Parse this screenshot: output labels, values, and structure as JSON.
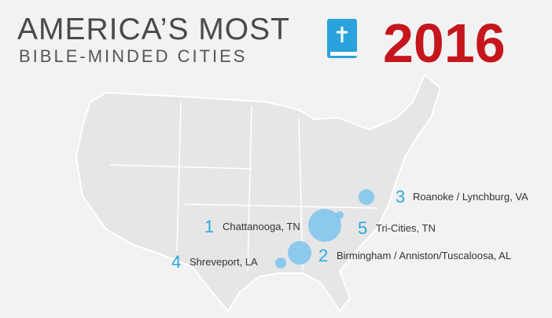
{
  "header": {
    "title": "AMERICA’S MOST",
    "subtitle": "BIBLE-MINDED CITIES",
    "year": "2016"
  },
  "cities": [
    {
      "rank": 1,
      "name": "Chattanooga, TN"
    },
    {
      "rank": 2,
      "name": "Birmingham / Anniston/Tuscaloosa, AL"
    },
    {
      "rank": 3,
      "name": "Roanoke / Lynchburg, VA"
    },
    {
      "rank": 4,
      "name": "Shreveport, LA"
    },
    {
      "rank": 5,
      "name": "Tri-Cities, TN"
    }
  ]
}
